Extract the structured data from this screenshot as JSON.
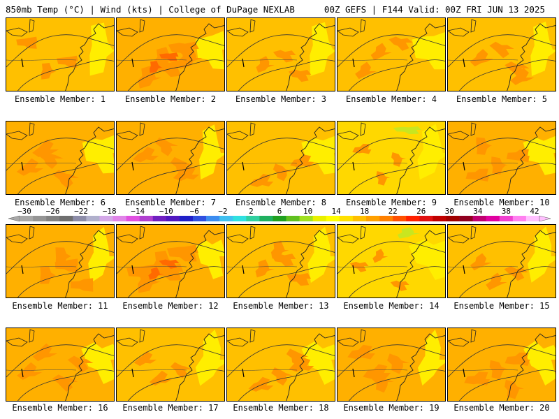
{
  "header": {
    "left": "850mb Temp (°C) | Wind (kts) | College of DuPage NEXLAB",
    "right": "00Z GEFS | F144 Valid: 00Z FRI JUN 13 2025"
  },
  "panels": [
    {
      "label": "Ensemble Member: 1",
      "warmth": 0.45
    },
    {
      "label": "Ensemble Member: 2",
      "warmth": 0.85
    },
    {
      "label": "Ensemble Member: 3",
      "warmth": 0.4
    },
    {
      "label": "Ensemble Member: 4",
      "warmth": 0.45
    },
    {
      "label": "Ensemble Member: 5",
      "warmth": 0.5
    },
    {
      "label": "Ensemble Member: 6",
      "warmth": 0.6
    },
    {
      "label": "Ensemble Member: 7",
      "warmth": 0.55
    },
    {
      "label": "Ensemble Member: 8",
      "warmth": 0.45
    },
    {
      "label": "Ensemble Member: 9",
      "warmth": 0.25
    },
    {
      "label": "Ensemble Member: 10",
      "warmth": 0.55
    },
    {
      "label": "Ensemble Member: 11",
      "warmth": 0.6
    },
    {
      "label": "Ensemble Member: 12",
      "warmth": 0.95
    },
    {
      "label": "Ensemble Member: 13",
      "warmth": 0.5
    },
    {
      "label": "Ensemble Member: 14",
      "warmth": 0.2
    },
    {
      "label": "Ensemble Member: 15",
      "warmth": 0.45
    },
    {
      "label": "Ensemble Member: 16",
      "warmth": 0.55
    },
    {
      "label": "Ensemble Member: 17",
      "warmth": 0.4
    },
    {
      "label": "Ensemble Member: 18",
      "warmth": 0.5
    },
    {
      "label": "Ensemble Member: 19",
      "warmth": 0.65
    },
    {
      "label": "Ensemble Member: 20",
      "warmth": 0.6
    }
  ],
  "colorbar": {
    "tick_labels": [
      "-30",
      "-26",
      "-22",
      "-18",
      "-14",
      "-10",
      "-6",
      "-2",
      "2",
      "6",
      "10",
      "14",
      "18",
      "22",
      "26",
      "30",
      "34",
      "38",
      "42"
    ],
    "colors": [
      "#a8a8a8",
      "#959595",
      "#828282",
      "#6f6f6f",
      "#8c8ca8",
      "#b0b0cc",
      "#d4a8e8",
      "#e084e8",
      "#e050e0",
      "#b040d0",
      "#7020c0",
      "#5018c0",
      "#2020c8",
      "#3050e0",
      "#3c8cf0",
      "#40c0f0",
      "#30e0e0",
      "#30d0a0",
      "#20b060",
      "#20a020",
      "#60c020",
      "#a0e020",
      "#e8f000",
      "#ffff00",
      "#ffe000",
      "#ffc000",
      "#ffa000",
      "#ff8000",
      "#ff5000",
      "#ff2000",
      "#e01010",
      "#c00000",
      "#a00000",
      "#900020",
      "#c00070",
      "#e000a0",
      "#f040d0",
      "#ff80f0",
      "#ffc0ff"
    ]
  }
}
